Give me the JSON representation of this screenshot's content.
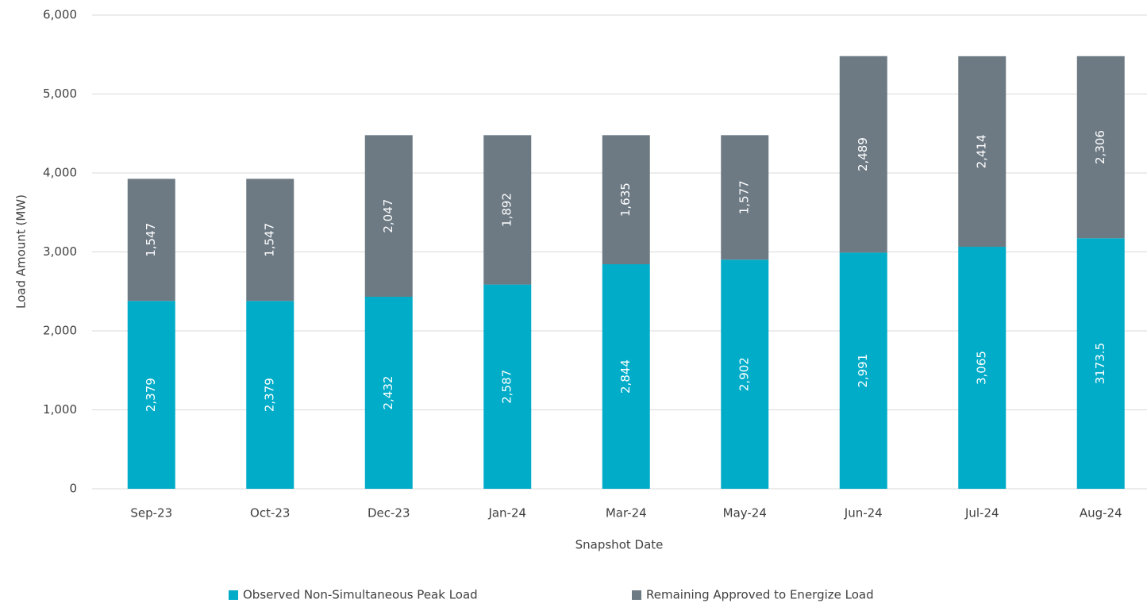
{
  "chart_data": {
    "type": "stacked_bar",
    "xlabel": "Snapshot Date",
    "ylabel": "Load Amount (MW)",
    "categories": [
      "Sep-23",
      "Oct-23",
      "Dec-23",
      "Jan-24",
      "Mar-24",
      "May-24",
      "Jun-24",
      "Jul-24",
      "Aug-24"
    ],
    "series": [
      {
        "name": "Observed Non-Simultaneous Peak Load",
        "color": "#00acc8",
        "values": [
          2379,
          2379,
          2432,
          2587,
          2844,
          2902,
          2991,
          3065,
          3173.5
        ],
        "value_labels": [
          "2,379",
          "2,379",
          "2,432",
          "2,587",
          "2,844",
          "2,902",
          "2,991",
          "3,065",
          "3173.5"
        ]
      },
      {
        "name": "Remaining Approved to Energize Load",
        "color": "#6d7a84",
        "values": [
          1547,
          1547,
          2047,
          1892,
          1635,
          1577,
          2489,
          2414,
          2306
        ],
        "value_labels": [
          "1,547",
          "1,547",
          "2,047",
          "1,892",
          "1,635",
          "1,577",
          "2,489",
          "2,414",
          "2,306"
        ]
      }
    ],
    "ylim": [
      0,
      6000
    ],
    "yticks": [
      0,
      {
        "value": 1000,
        "label": "1,000"
      },
      {
        "value": 2000,
        "label": "2,000"
      },
      {
        "value": 3000,
        "label": "3,000"
      },
      {
        "value": 4000,
        "label": "4,000"
      },
      {
        "value": 5000,
        "label": "5,000"
      },
      {
        "value": 6000,
        "label": "6,000"
      }
    ],
    "grid": true,
    "legend": "bottom"
  }
}
